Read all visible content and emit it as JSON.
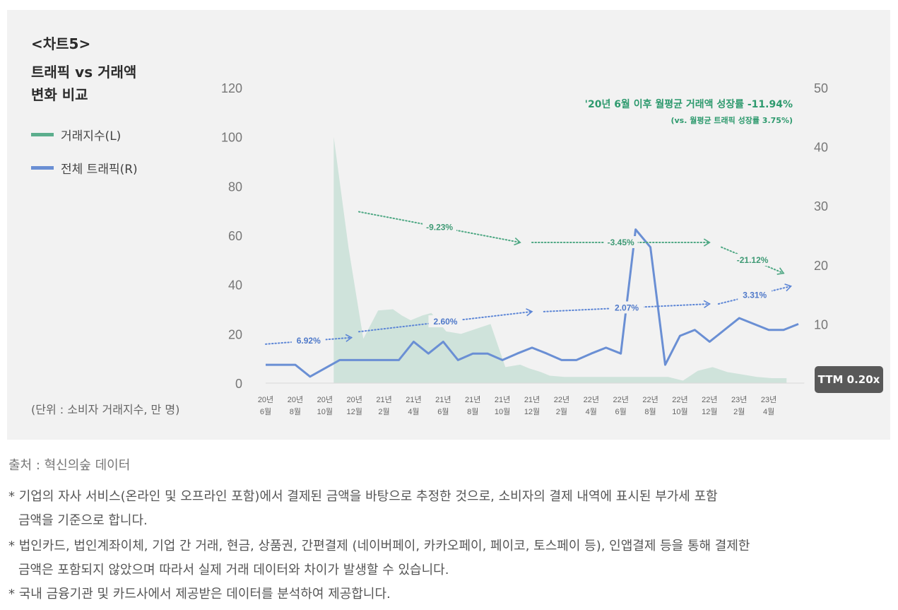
{
  "title": {
    "line1": "<차트5>",
    "line2": "트래픽 vs 거래액",
    "line3": "변화 비교"
  },
  "legend": [
    {
      "label": "거래지수(L)",
      "color": "#5cae8d"
    },
    {
      "label": "전체 트래픽(R)",
      "color": "#6a8fd4"
    }
  ],
  "unit_note": "(단위 : 소비자 거래지수, 만 명)",
  "headline": "'20년 6월 이후 월평균 거래액 성장률 -11.94%",
  "subline": "(vs. 월평균 트래픽 성장률 3.75%)",
  "ttm_badge": "TTM 0.20x",
  "source": "출처 : 혁신의숲 데이터",
  "notes": [
    "* 기업의 자사 서비스(온라인 및 오프라인 포함)에서 결제된 금액을 바탕으로 추정한 것으로, 소비자의 결제 내역에 표시된 부가세 포함",
    "금액을 기준으로 합니다.",
    "* 법인카드, 법인계좌이체, 기업 간 거래, 현금, 상품권, 간편결제 (네이버페이, 카카오페이, 페이코, 토스페이 등), 인앱결제 등을 통해 결제한",
    "금액은 포함되지 않았으며 따라서 실제 거래 데이터와 차이가 발생할 수 있습니다.",
    "* 국내 금융기관 및 카드사에서 제공받은 데이터를 분석하여 제공합니다."
  ],
  "chart_data": {
    "type": "area+line",
    "x_labels": [
      [
        "20년",
        "6월"
      ],
      [
        "20년",
        "8월"
      ],
      [
        "20년",
        "10월"
      ],
      [
        "20년",
        "12월"
      ],
      [
        "21년",
        "2월"
      ],
      [
        "21년",
        "4월"
      ],
      [
        "21년",
        "6월"
      ],
      [
        "21년",
        "8월"
      ],
      [
        "21년",
        "10월"
      ],
      [
        "21년",
        "12월"
      ],
      [
        "22년",
        "2월"
      ],
      [
        "22년",
        "4월"
      ],
      [
        "22년",
        "6월"
      ],
      [
        "22년",
        "8월"
      ],
      [
        "22년",
        "10월"
      ],
      [
        "22년",
        "12월"
      ],
      [
        "23년",
        "2월"
      ],
      [
        "23년",
        "4월"
      ]
    ],
    "x_range": [
      0,
      36.9
    ],
    "y_left": {
      "label": "거래지수",
      "ticks": [
        "0",
        "20",
        "40",
        "60",
        "80",
        "100",
        "120"
      ],
      "range": [
        0,
        120
      ]
    },
    "y_right": {
      "label": "전체 트래픽",
      "ticks": [
        "10",
        "20",
        "30",
        "40",
        "50"
      ],
      "range": [
        0,
        50
      ]
    },
    "series_left_area": {
      "name": "거래지수(L)",
      "color": "#cfe3db",
      "x": [
        4.6,
        5.6,
        6.6,
        7.6,
        8.6,
        9.2,
        9.8,
        10.6,
        11.2,
        12.2,
        13.2,
        14.2,
        15.2,
        16.2,
        17.2,
        17.8,
        18.6,
        19.2,
        20.2,
        21.2,
        22.2,
        23.2,
        24.2,
        25.2,
        26.2,
        27.2,
        28.2,
        29.2,
        30.2,
        31.2,
        32.2,
        33.2,
        34.2,
        35.2
      ],
      "values": [
        100.0,
        55.0,
        18.0,
        29.5,
        30.0,
        27.5,
        25.5,
        27.5,
        28.5,
        21.0,
        20.0,
        22.0,
        24.0,
        6.5,
        7.5,
        6.0,
        4.5,
        3.0,
        2.5,
        2.5,
        2.5,
        2.5,
        2.5,
        2.5,
        2.5,
        2.5,
        1.0,
        5.0,
        6.5,
        4.5,
        3.5,
        2.5,
        2.0,
        2.0
      ]
    },
    "series_right_line": {
      "name": "전체 트래픽(R)",
      "color": "#6a8fd4",
      "x": [
        0,
        2,
        3,
        5,
        6,
        7,
        8,
        9,
        10,
        11,
        12,
        13,
        14,
        15,
        16,
        17,
        18,
        19,
        20,
        21,
        22,
        23,
        24,
        25,
        26,
        27,
        28,
        29,
        30,
        31,
        32,
        33,
        34,
        35,
        36
      ],
      "values": [
        3.1,
        3.1,
        1.1,
        3.9,
        3.9,
        3.9,
        3.9,
        3.9,
        7.0,
        5.0,
        7.0,
        3.9,
        5.0,
        5.0,
        3.9,
        5.0,
        6.0,
        5.0,
        3.9,
        3.9,
        5.0,
        6.0,
        5.0,
        26.0,
        23.0,
        3.1,
        8.0,
        9.0,
        7.0,
        9.0,
        11.0,
        10.0,
        9.0,
        9.0,
        10.0
      ]
    },
    "trend_arrows_transactions": [
      {
        "label": "-9.23%",
        "from": [
          6.3,
          29.0
        ],
        "to": [
          17.2,
          23.8
        ]
      },
      {
        "label": "-3.45%",
        "from": [
          18.0,
          23.8
        ],
        "to": [
          30.0,
          23.8
        ]
      },
      {
        "label": "-21.12%",
        "from": [
          30.8,
          23.0
        ],
        "to": [
          35.0,
          18.6
        ]
      }
    ],
    "trend_arrows_traffic": [
      {
        "label": "6.92%",
        "from": [
          0,
          6.6
        ],
        "to": [
          5.8,
          7.7
        ]
      },
      {
        "label": "2.60%",
        "from": [
          6.3,
          8.7
        ],
        "to": [
          18.0,
          12.1
        ]
      },
      {
        "label": "2.07%",
        "from": [
          18.8,
          12.1
        ],
        "to": [
          30.0,
          13.4
        ]
      },
      {
        "label": "3.31%",
        "from": [
          30.6,
          13.4
        ],
        "to": [
          35.5,
          16.4
        ]
      }
    ]
  }
}
